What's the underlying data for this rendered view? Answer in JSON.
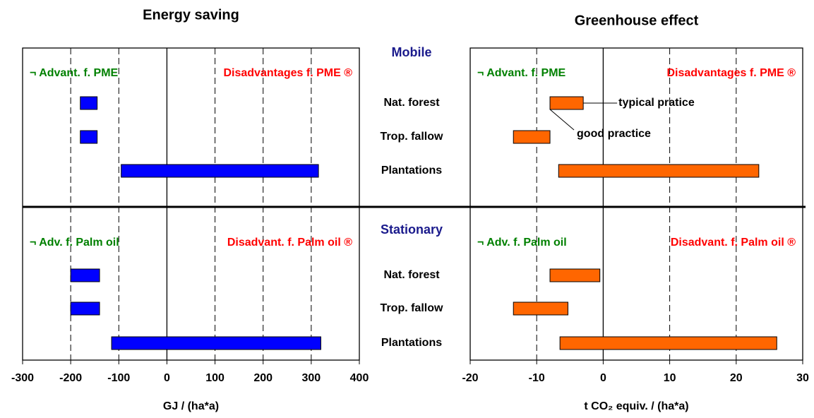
{
  "chart_data": {
    "type": "range_bar",
    "groups": [
      {
        "name": "Mobile",
        "categories": [
          "Nat. forest",
          "Trop. fallow",
          "Plantations"
        ]
      },
      {
        "name": "Stationary",
        "categories": [
          "Nat. forest",
          "Trop. fallow",
          "Plantations"
        ]
      }
    ],
    "panels": [
      {
        "title": "Energy saving",
        "xlabel": "GJ / (ha*a)",
        "color": "#0000ff",
        "grid": true,
        "xlim": [
          -300,
          400
        ],
        "xticks": [
          -300,
          -200,
          -100,
          0,
          100,
          200,
          300,
          400
        ],
        "group_labels": [
          {
            "left": "¬  Advant. f. PME",
            "right": "Disadvantages f. PME ®"
          },
          {
            "left": "¬  Adv. f. Palm oil",
            "right": "Disadvant. f. Palm oil ®"
          }
        ],
        "low": [
          [
            -180,
            -180,
            -95
          ],
          [
            -200,
            -200,
            -115
          ]
        ],
        "high": [
          [
            -145,
            -145,
            315
          ],
          [
            -140,
            -140,
            320
          ]
        ]
      },
      {
        "title": "Greenhouse effect",
        "xlabel": "t CO₂ equiv. / (ha*a)",
        "color": "#ff6600",
        "grid": true,
        "xlim": [
          -20,
          30
        ],
        "xticks": [
          -20,
          -10,
          0,
          10,
          20,
          30
        ],
        "group_labels": [
          {
            "left": "¬  Advant. f. PME",
            "right": "Disadvantages f. PME ®"
          },
          {
            "left": "¬  Adv. f. Palm oil",
            "right": "Disadvant. f. Palm oil ®"
          }
        ],
        "low": [
          [
            -8,
            -13.5,
            -6.7
          ],
          [
            -8,
            -13.5,
            -6.5
          ]
        ],
        "high": [
          [
            -3,
            -8,
            23.4
          ],
          [
            -0.5,
            -5.3,
            26.1
          ]
        ],
        "annotations": [
          "typical pratice",
          "good practice"
        ]
      }
    ]
  }
}
